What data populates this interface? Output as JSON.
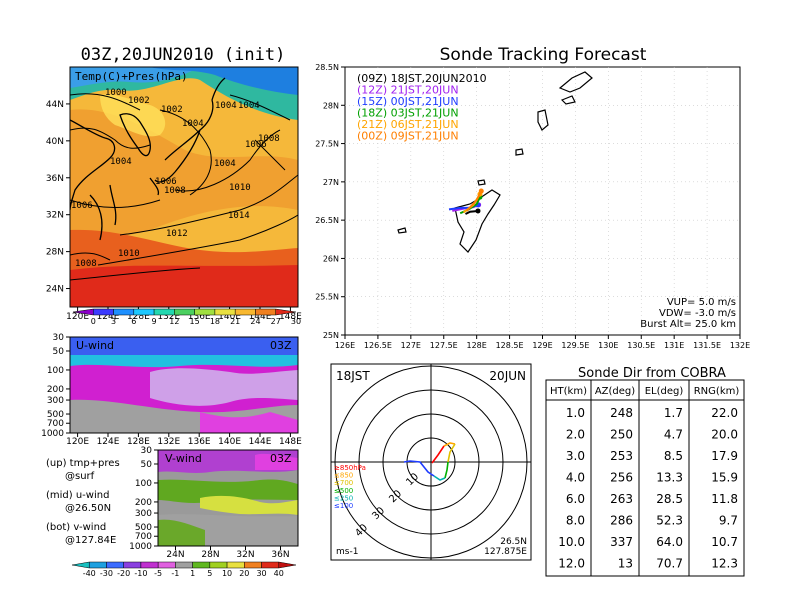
{
  "left_title": "03Z,20JUN2010 (init)",
  "map_panel": {
    "label": "Temp(C)+Pres(hPa)",
    "x_ticks": [
      "120E",
      "124E",
      "128E",
      "132E",
      "136E",
      "140E",
      "144E",
      "148E"
    ],
    "y_ticks": [
      "24N",
      "28N",
      "32N",
      "36N",
      "40N",
      "44N"
    ],
    "contour_labels": [
      "1000",
      "1002",
      "1002",
      "1004",
      "1004",
      "1004",
      "1004",
      "1006",
      "1006",
      "1006",
      "1008",
      "1008",
      "1008",
      "1010",
      "1010",
      "1012",
      "1014"
    ],
    "colorbar_ticks": [
      "0",
      "3",
      "6",
      "9",
      "12",
      "15",
      "18",
      "21",
      "24",
      "27",
      "30"
    ]
  },
  "u_panel": {
    "label": "U-wind",
    "time": "03Z",
    "y_ticks": [
      "30",
      "50",
      "100",
      "200",
      "300",
      "500",
      "700",
      "1000"
    ],
    "x_ticks": [
      "120E",
      "124E",
      "128E",
      "132E",
      "136E",
      "140E",
      "144E",
      "148E"
    ]
  },
  "v_panel": {
    "label": "V-wind",
    "time": "03Z",
    "y_ticks": [
      "30",
      "50",
      "100",
      "200",
      "300",
      "500",
      "700",
      "1000"
    ],
    "x_ticks": [
      "24N",
      "28N",
      "32N",
      "36N"
    ]
  },
  "notes": [
    "(up) tmp+pres",
    "@surf",
    "(mid) u-wind",
    "@26.50N",
    "(bot) v-wind",
    "@127.84E"
  ],
  "wind_colorbar_ticks": [
    "-40",
    "-30",
    "-20",
    "-10",
    "-5",
    "-1",
    "1",
    "5",
    "10",
    "20",
    "30",
    "40"
  ],
  "track_panel": {
    "title": "Sonde Tracking Forecast",
    "legend": [
      {
        "text": "(09Z) 18JST,20JUN2010",
        "color": "#000000"
      },
      {
        "text": "(12Z) 21JST,20JUN",
        "color": "#a020f0"
      },
      {
        "text": "(15Z) 00JST,21JUN",
        "color": "#1e3cff"
      },
      {
        "text": "(18Z) 03JST,21JUN",
        "color": "#00a000"
      },
      {
        "text": "(21Z) 06JST,21JUN",
        "color": "#ffa500"
      },
      {
        "text": "(00Z) 09JST,21JUN",
        "color": "#ff7f00"
      }
    ],
    "x_ticks": [
      "126E",
      "126.5E",
      "127E",
      "127.5E",
      "128E",
      "128.5E",
      "129E",
      "129.5E",
      "130E",
      "130.5E",
      "131E",
      "131.5E",
      "132E"
    ],
    "y_ticks": [
      "25N",
      "25.5N",
      "26N",
      "26.5N",
      "27N",
      "27.5N",
      "28N",
      "28.5N"
    ],
    "params": [
      "VUP= 5.0 m/s",
      "VDW= -3.0 m/s",
      "Burst Alt= 25.0 km"
    ]
  },
  "polar_panel": {
    "time_left": "18JST",
    "time_right": "20JUN",
    "ring_labels": [
      "10",
      "20",
      "30",
      "40"
    ],
    "level_legend": [
      {
        "text": "≥850hPa",
        "color": "#ff0000"
      },
      {
        "text": "≤850",
        "color": "#ffa500"
      },
      {
        "text": "≤700",
        "color": "#e0c000"
      },
      {
        "text": "≤500",
        "color": "#00b000"
      },
      {
        "text": "≤250",
        "color": "#00b0b0"
      },
      {
        "text": "≤100",
        "color": "#1e3cff"
      }
    ],
    "location": [
      "26.5N",
      "127.875E"
    ],
    "unit": "ms-1"
  },
  "table": {
    "title": "Sonde Dir from COBRA",
    "headers": [
      "HT(km)",
      "AZ(deg)",
      "EL(deg)",
      "RNG(km)"
    ],
    "rows": [
      [
        "1.0",
        "248",
        "1.7",
        "22.0"
      ],
      [
        "2.0",
        "250",
        "4.7",
        "20.0"
      ],
      [
        "3.0",
        "253",
        "8.5",
        "17.9"
      ],
      [
        "4.0",
        "256",
        "13.3",
        "15.9"
      ],
      [
        "6.0",
        "263",
        "28.5",
        "11.8"
      ],
      [
        "8.0",
        "286",
        "52.3",
        "9.7"
      ],
      [
        "10.0",
        "337",
        "64.0",
        "10.7"
      ],
      [
        "12.0",
        "13",
        "70.7",
        "12.3"
      ]
    ]
  },
  "chart_data": [
    {
      "type": "heatmap",
      "title": "03Z,20JUN2010 (init)",
      "label": "Temp(C)+Pres(hPa)",
      "x_range": [
        "120E",
        "150E"
      ],
      "y_range": [
        "22N",
        "48N"
      ],
      "colorbar": [
        0,
        3,
        6,
        9,
        12,
        15,
        18,
        21,
        24,
        27,
        30
      ],
      "pressure_contours_hPa": [
        1000,
        1002,
        1004,
        1006,
        1008,
        1010,
        1012,
        1014
      ]
    },
    {
      "type": "heatmap",
      "label": "U-wind",
      "time": "03Z",
      "section": "@26.50N",
      "x_range": [
        "120E",
        "150E"
      ],
      "y_levels_hPa": [
        30,
        50,
        100,
        200,
        300,
        500,
        700,
        1000
      ]
    },
    {
      "type": "heatmap",
      "label": "V-wind",
      "time": "03Z",
      "section": "@127.84E",
      "x_range": [
        "22N",
        "38N"
      ],
      "y_levels_hPa": [
        30,
        50,
        100,
        200,
        300,
        500,
        700,
        1000
      ],
      "colorbar": [
        -40,
        -30,
        -20,
        -10,
        -5,
        -1,
        1,
        5,
        10,
        20,
        30,
        40
      ]
    },
    {
      "type": "line",
      "title": "Sonde Tracking Forecast",
      "xlim": [
        126,
        132
      ],
      "ylim": [
        25,
        28.5
      ],
      "series": [
        {
          "name": "(09Z) 18JST,20JUN2010",
          "color": "#000000",
          "x": [
            127.83,
            127.9,
            128.02
          ],
          "y": [
            26.58,
            26.61,
            26.62
          ]
        },
        {
          "name": "(12Z) 21JST,20JUN",
          "color": "#a020f0",
          "x": [
            127.63,
            127.8,
            127.95,
            128.03
          ],
          "y": [
            26.62,
            26.65,
            26.67,
            26.7
          ]
        },
        {
          "name": "(15Z) 00JST,21JUN",
          "color": "#1e3cff",
          "x": [
            127.58,
            127.75,
            127.9,
            128.02
          ],
          "y": [
            26.64,
            26.66,
            26.66,
            26.7
          ]
        },
        {
          "name": "(18Z) 03JST,21JUN",
          "color": "#00a000",
          "x": [
            127.75,
            127.88,
            128.0,
            128.05
          ],
          "y": [
            26.59,
            26.64,
            26.71,
            26.8
          ]
        },
        {
          "name": "(21Z) 06JST,21JUN",
          "color": "#ffa500",
          "x": [
            127.8,
            127.95,
            128.05
          ],
          "y": [
            26.6,
            26.7,
            26.84
          ]
        },
        {
          "name": "(00Z) 09JST,21JUN",
          "color": "#ff7f00",
          "x": [
            127.85,
            128.0,
            128.07
          ],
          "y": [
            26.62,
            26.76,
            26.88
          ]
        }
      ]
    },
    {
      "type": "table",
      "title": "Sonde Dir from COBRA",
      "columns": [
        "HT(km)",
        "AZ(deg)",
        "EL(deg)",
        "RNG(km)"
      ],
      "rows": [
        [
          1.0,
          248,
          1.7,
          22.0
        ],
        [
          2.0,
          250,
          4.7,
          20.0
        ],
        [
          3.0,
          253,
          8.5,
          17.9
        ],
        [
          4.0,
          256,
          13.3,
          15.9
        ],
        [
          6.0,
          263,
          28.5,
          11.8
        ],
        [
          8.0,
          286,
          52.3,
          9.7
        ],
        [
          10.0,
          337,
          64.0,
          10.7
        ],
        [
          12.0,
          13,
          70.7,
          12.3
        ]
      ]
    }
  ]
}
